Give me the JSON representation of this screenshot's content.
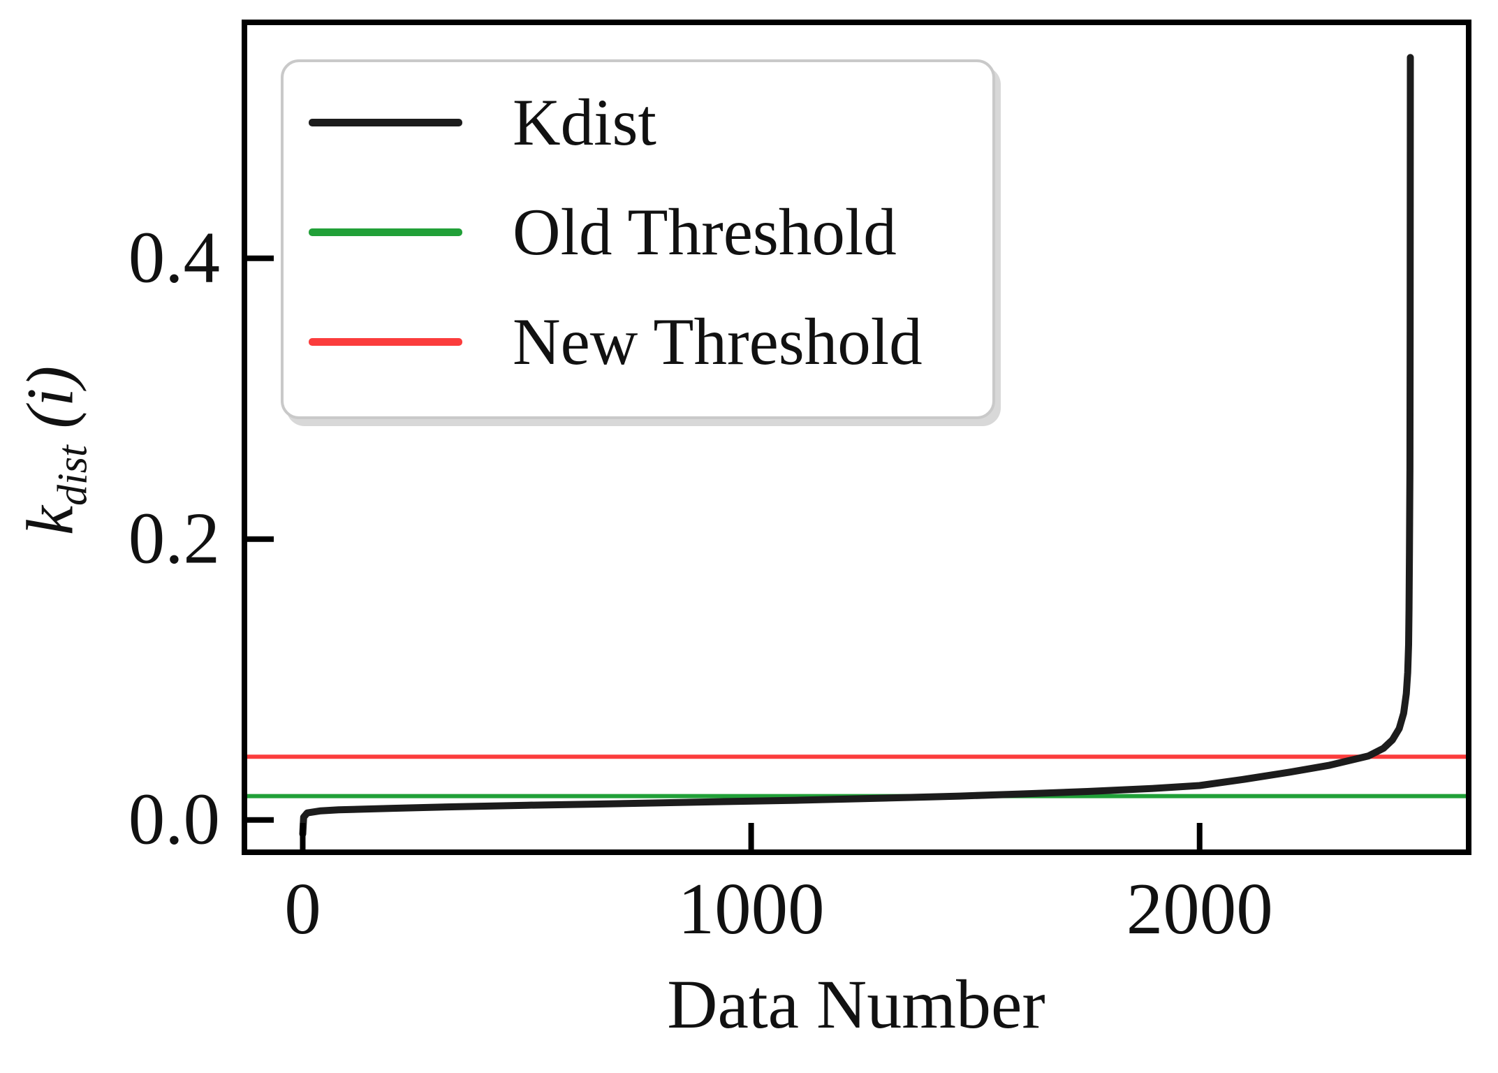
{
  "figure": {
    "background": "#ffffff",
    "axis_color": "#000000",
    "text_color": "#111111"
  },
  "chart_data": {
    "type": "line",
    "title": "",
    "xlabel": "Data Number",
    "ylabel": {
      "base": "k",
      "sub": "dist",
      "rest": " (i)",
      "text": "k_dist (i)"
    },
    "xlim": [
      -130,
      2600
    ],
    "ylim": [
      -0.023,
      0.568
    ],
    "grid": false,
    "legend_position": "upper left",
    "xticks": [
      {
        "label": "0",
        "value": 0
      },
      {
        "label": "1000",
        "value": 1000
      },
      {
        "label": "2000",
        "value": 2000
      }
    ],
    "yticks": [
      {
        "label": "0.0",
        "value": 0.0
      },
      {
        "label": "0.2",
        "value": 0.2
      },
      {
        "label": "0.4",
        "value": 0.4
      }
    ],
    "old_threshold": 0.017,
    "new_threshold": 0.045,
    "series": [
      {
        "name": "Kdist",
        "color": "#1c1c1c",
        "line_width": 10,
        "points": [
          [
            0,
            -0.01
          ],
          [
            2,
            0.002
          ],
          [
            10,
            0.005
          ],
          [
            40,
            0.0065
          ],
          [
            80,
            0.0072
          ],
          [
            200,
            0.0083
          ],
          [
            350,
            0.0095
          ],
          [
            500,
            0.0105
          ],
          [
            650,
            0.0113
          ],
          [
            800,
            0.0122
          ],
          [
            950,
            0.0131
          ],
          [
            1100,
            0.014
          ],
          [
            1250,
            0.0152
          ],
          [
            1400,
            0.0164
          ],
          [
            1465,
            0.017
          ],
          [
            1600,
            0.0185
          ],
          [
            1750,
            0.0203
          ],
          [
            1900,
            0.0225
          ],
          [
            2000,
            0.0245
          ],
          [
            2100,
            0.029
          ],
          [
            2200,
            0.034
          ],
          [
            2290,
            0.039
          ],
          [
            2376,
            0.0455
          ],
          [
            2410,
            0.051
          ],
          [
            2430,
            0.057
          ],
          [
            2445,
            0.065
          ],
          [
            2455,
            0.076
          ],
          [
            2461,
            0.09
          ],
          [
            2464,
            0.105
          ],
          [
            2466,
            0.125
          ],
          [
            2467,
            0.15
          ],
          [
            2468,
            0.19
          ],
          [
            2469,
            0.25
          ],
          [
            2469.5,
            0.35
          ],
          [
            2470,
            0.543
          ]
        ]
      },
      {
        "name": "Old Threshold",
        "color": "#21a038",
        "line_width": 6,
        "hline": 0.017
      },
      {
        "name": "New Threshold",
        "color": "#fb3c3c",
        "line_width": 6,
        "hline": 0.045
      }
    ]
  }
}
